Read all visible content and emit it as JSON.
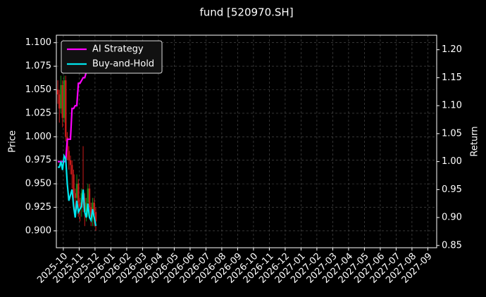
{
  "chart_data": {
    "type": "candlestick",
    "title": "fund [520970.SH]",
    "ylabel": "Price",
    "y2label": "Return",
    "x": [
      -0.35,
      -0.25,
      -0.15,
      -0.05,
      0.05,
      0.15,
      0.25,
      0.35,
      0.45,
      0.55,
      0.65,
      0.75,
      0.85,
      0.95,
      1.05,
      1.15,
      1.25,
      1.35,
      1.45,
      1.55,
      1.65,
      1.75,
      1.85,
      1.95,
      2.05
    ],
    "open": [
      1.05,
      1.045,
      1.03,
      1.055,
      1.02,
      1.06,
      1.0,
      0.985,
      0.975,
      0.97,
      0.96,
      0.94,
      0.935,
      0.95,
      0.93,
      0.925,
      0.94,
      0.935,
      0.92,
      0.93,
      0.945,
      0.925,
      0.915,
      0.93,
      0.92
    ],
    "high": [
      1.06,
      1.05,
      1.065,
      1.06,
      1.065,
      1.065,
      1.005,
      0.99,
      0.98,
      0.975,
      0.965,
      0.945,
      0.96,
      0.955,
      0.935,
      0.945,
      0.99,
      0.94,
      0.935,
      0.95,
      0.95,
      0.93,
      0.935,
      0.935,
      0.925
    ],
    "low": [
      1.035,
      1.015,
      1.025,
      1.01,
      1.015,
      0.995,
      0.975,
      0.965,
      0.96,
      0.945,
      0.925,
      0.92,
      0.925,
      0.915,
      0.91,
      0.915,
      0.92,
      0.905,
      0.91,
      0.915,
      0.915,
      0.905,
      0.905,
      0.905,
      0.9
    ],
    "close": [
      1.045,
      1.03,
      1.055,
      1.02,
      1.06,
      1.0,
      0.985,
      0.975,
      0.97,
      0.96,
      0.94,
      0.935,
      0.95,
      0.93,
      0.925,
      0.94,
      0.935,
      0.92,
      0.93,
      0.945,
      0.925,
      0.915,
      0.93,
      0.92,
      0.91
    ],
    "up_color": "#1a8a1a",
    "down_color": "#cc1a1a",
    "series": [
      {
        "name": "AI Strategy",
        "color": "#ff00ff",
        "axis": "y2",
        "values": [
          1.0,
          1.0,
          1.0,
          1.0,
          1.0,
          1.0,
          1.04,
          1.04,
          1.04,
          1.095,
          1.095,
          1.1,
          1.1,
          1.14,
          1.14,
          1.145,
          1.15,
          1.15,
          1.16,
          1.17,
          1.17,
          1.18,
          1.16,
          1.18,
          1.2
        ]
      },
      {
        "name": "Buy-and-Hold",
        "color": "#00e5ee",
        "axis": "y2",
        "values": [
          0.99,
          0.99,
          1.0,
          0.985,
          1.01,
          1.005,
          0.96,
          0.93,
          0.94,
          0.95,
          0.92,
          0.9,
          0.93,
          0.91,
          0.915,
          0.92,
          0.95,
          0.91,
          0.9,
          0.925,
          0.9,
          0.895,
          0.915,
          0.9,
          0.885
        ]
      }
    ],
    "xlim": [
      -0.44,
      23.56
    ],
    "xticks": [
      {
        "value": 0,
        "label": "2025-10"
      },
      {
        "value": 1,
        "label": "2025-11"
      },
      {
        "value": 2,
        "label": "2025-12"
      },
      {
        "value": 3,
        "label": "2026-01"
      },
      {
        "value": 4,
        "label": "2026-02"
      },
      {
        "value": 5,
        "label": "2026-03"
      },
      {
        "value": 6,
        "label": "2026-04"
      },
      {
        "value": 7,
        "label": "2026-05"
      },
      {
        "value": 8,
        "label": "2026-06"
      },
      {
        "value": 9,
        "label": "2026-07"
      },
      {
        "value": 10,
        "label": "2026-08"
      },
      {
        "value": 11,
        "label": "2026-09"
      },
      {
        "value": 12,
        "label": "2026-10"
      },
      {
        "value": 13,
        "label": "2026-11"
      },
      {
        "value": 14,
        "label": "2026-12"
      },
      {
        "value": 15,
        "label": "2027-01"
      },
      {
        "value": 16,
        "label": "2027-02"
      },
      {
        "value": 17,
        "label": "2027-03"
      },
      {
        "value": 18,
        "label": "2027-04"
      },
      {
        "value": 19,
        "label": "2027-05"
      },
      {
        "value": 20,
        "label": "2027-06"
      },
      {
        "value": 21,
        "label": "2027-07"
      },
      {
        "value": 22,
        "label": "2027-08"
      },
      {
        "value": 23,
        "label": "2027-09"
      }
    ],
    "ylim": [
      0.882,
      1.108
    ],
    "yticks": [
      {
        "value": 0.9,
        "label": "0.900"
      },
      {
        "value": 0.925,
        "label": "0.925"
      },
      {
        "value": 0.95,
        "label": "0.950"
      },
      {
        "value": 0.975,
        "label": "0.975"
      },
      {
        "value": 1.0,
        "label": "1.000"
      },
      {
        "value": 1.025,
        "label": "1.025"
      },
      {
        "value": 1.05,
        "label": "1.050"
      },
      {
        "value": 1.075,
        "label": "1.075"
      },
      {
        "value": 1.1,
        "label": "1.100"
      }
    ],
    "y2lim": [
      0.846,
      1.226
    ],
    "y2ticks": [
      0.85,
      {
        "value": 0.9,
        "label": "0.90"
      },
      0.95,
      {
        "value": 1.0,
        "label": "1.00"
      },
      1.05,
      {
        "value": 1.1,
        "label": "1.10"
      },
      1.15,
      {
        "value": 1.2,
        "label": "1.20"
      }
    ],
    "grid": true,
    "legend": "upper left"
  }
}
